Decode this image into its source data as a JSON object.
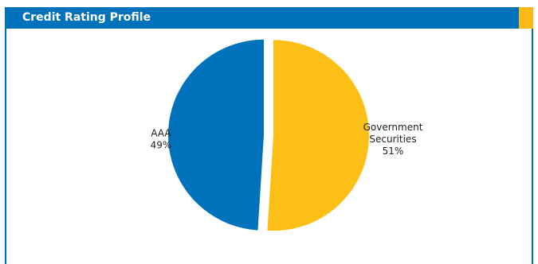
{
  "panel": {
    "title": "Credit Rating Profile",
    "border_color": "#0072bc",
    "accent_color": "#fcb814"
  },
  "chart_data": {
    "type": "pie",
    "title": "Credit Rating Profile",
    "slices": [
      {
        "label_lines": [
          "Government",
          "Securities"
        ],
        "percent_label": "51%",
        "value": 51,
        "color": "#fcbf16"
      },
      {
        "label_lines": [
          "AAA"
        ],
        "percent_label": "49%",
        "value": 49,
        "color": "#0072bc"
      }
    ]
  }
}
